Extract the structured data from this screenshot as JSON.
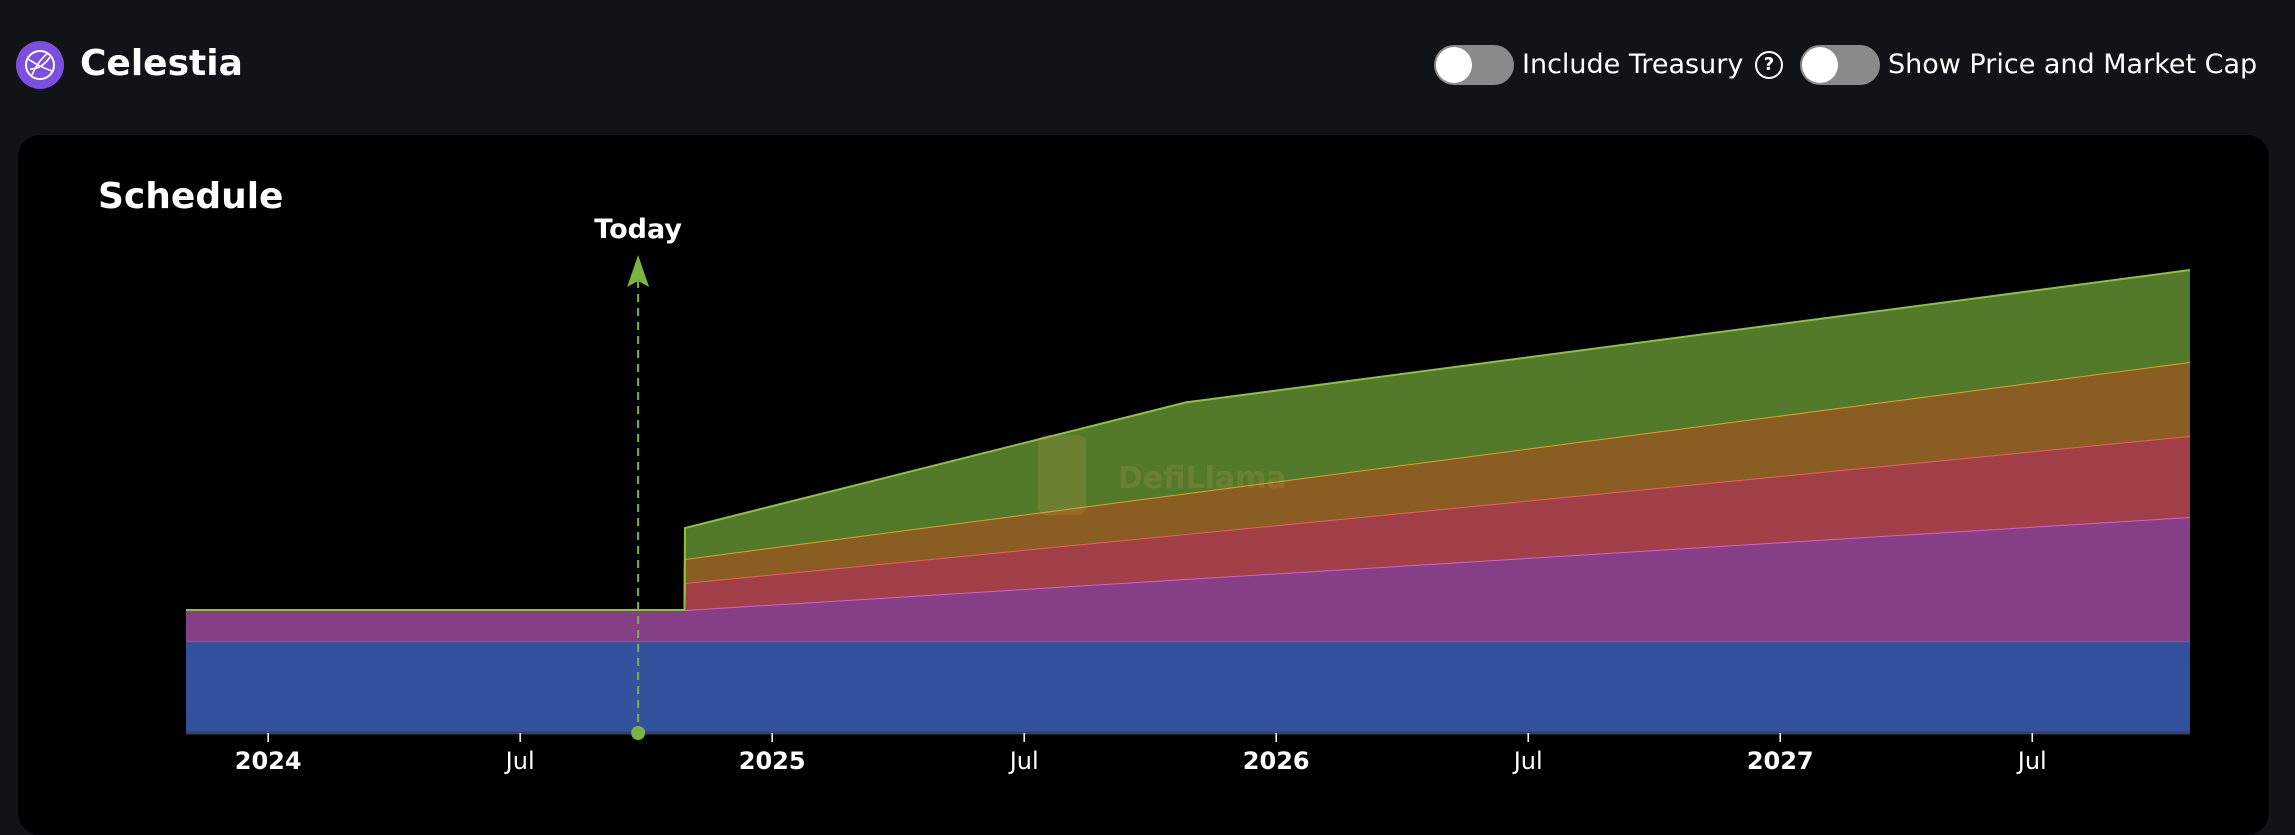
{
  "header": {
    "title": "Celestia",
    "logo_icon": "celestia-logo-icon",
    "toggles": [
      {
        "label": "Include Treasury",
        "on": false,
        "has_help": true
      },
      {
        "label": "Show Price and Market Cap",
        "on": false,
        "has_help": false
      }
    ],
    "help_glyph": "?"
  },
  "watermark": "DefiLlama",
  "chart_data": {
    "type": "area",
    "stacked": true,
    "title": "Schedule",
    "xlabel": "",
    "ylabel": "",
    "xlim": [
      2023.837,
      2027.813
    ],
    "ylim": [
      0,
      500
    ],
    "grid": false,
    "today": {
      "label": "Today",
      "x": 2024.734
    },
    "x_ticks": [
      {
        "label": "2024",
        "x": 2024.0,
        "bold": true
      },
      {
        "label": "Jul",
        "x": 2024.5,
        "bold": false
      },
      {
        "label": "2025",
        "x": 2025.0,
        "bold": true
      },
      {
        "label": "Jul",
        "x": 2025.5,
        "bold": false
      },
      {
        "label": "2026",
        "x": 2026.0,
        "bold": true
      },
      {
        "label": "Jul",
        "x": 2026.5,
        "bold": false
      },
      {
        "label": "2027",
        "x": 2027.0,
        "bold": true
      },
      {
        "label": "Jul",
        "x": 2027.5,
        "bold": false
      }
    ],
    "series": [
      {
        "name": "blue",
        "fill": "#33529e",
        "line": "#4a6fd6",
        "points": [
          [
            2023.837,
            92
          ],
          [
            2027.813,
            92
          ]
        ]
      },
      {
        "name": "purple",
        "fill": "#843f86",
        "line": "#d060d0",
        "points": [
          [
            2023.837,
            31
          ],
          [
            2024.827,
            31
          ],
          [
            2027.813,
            124
          ]
        ]
      },
      {
        "name": "red",
        "fill": "#a03f48",
        "line": "#f05a64",
        "points": [
          [
            2023.837,
            0
          ],
          [
            2024.826,
            0
          ],
          [
            2024.827,
            27
          ],
          [
            2027.813,
            81
          ]
        ]
      },
      {
        "name": "orange",
        "fill": "#8a5e22",
        "line": "#e0a030",
        "points": [
          [
            2023.837,
            0
          ],
          [
            2024.826,
            0
          ],
          [
            2024.827,
            24
          ],
          [
            2027.813,
            74
          ]
        ]
      },
      {
        "name": "green",
        "fill": "#537a2b",
        "line": "#8fc040",
        "points": [
          [
            2023.837,
            0
          ],
          [
            2024.826,
            0
          ],
          [
            2024.827,
            31
          ],
          [
            2025.821,
            91
          ],
          [
            2027.813,
            92
          ]
        ]
      }
    ]
  }
}
